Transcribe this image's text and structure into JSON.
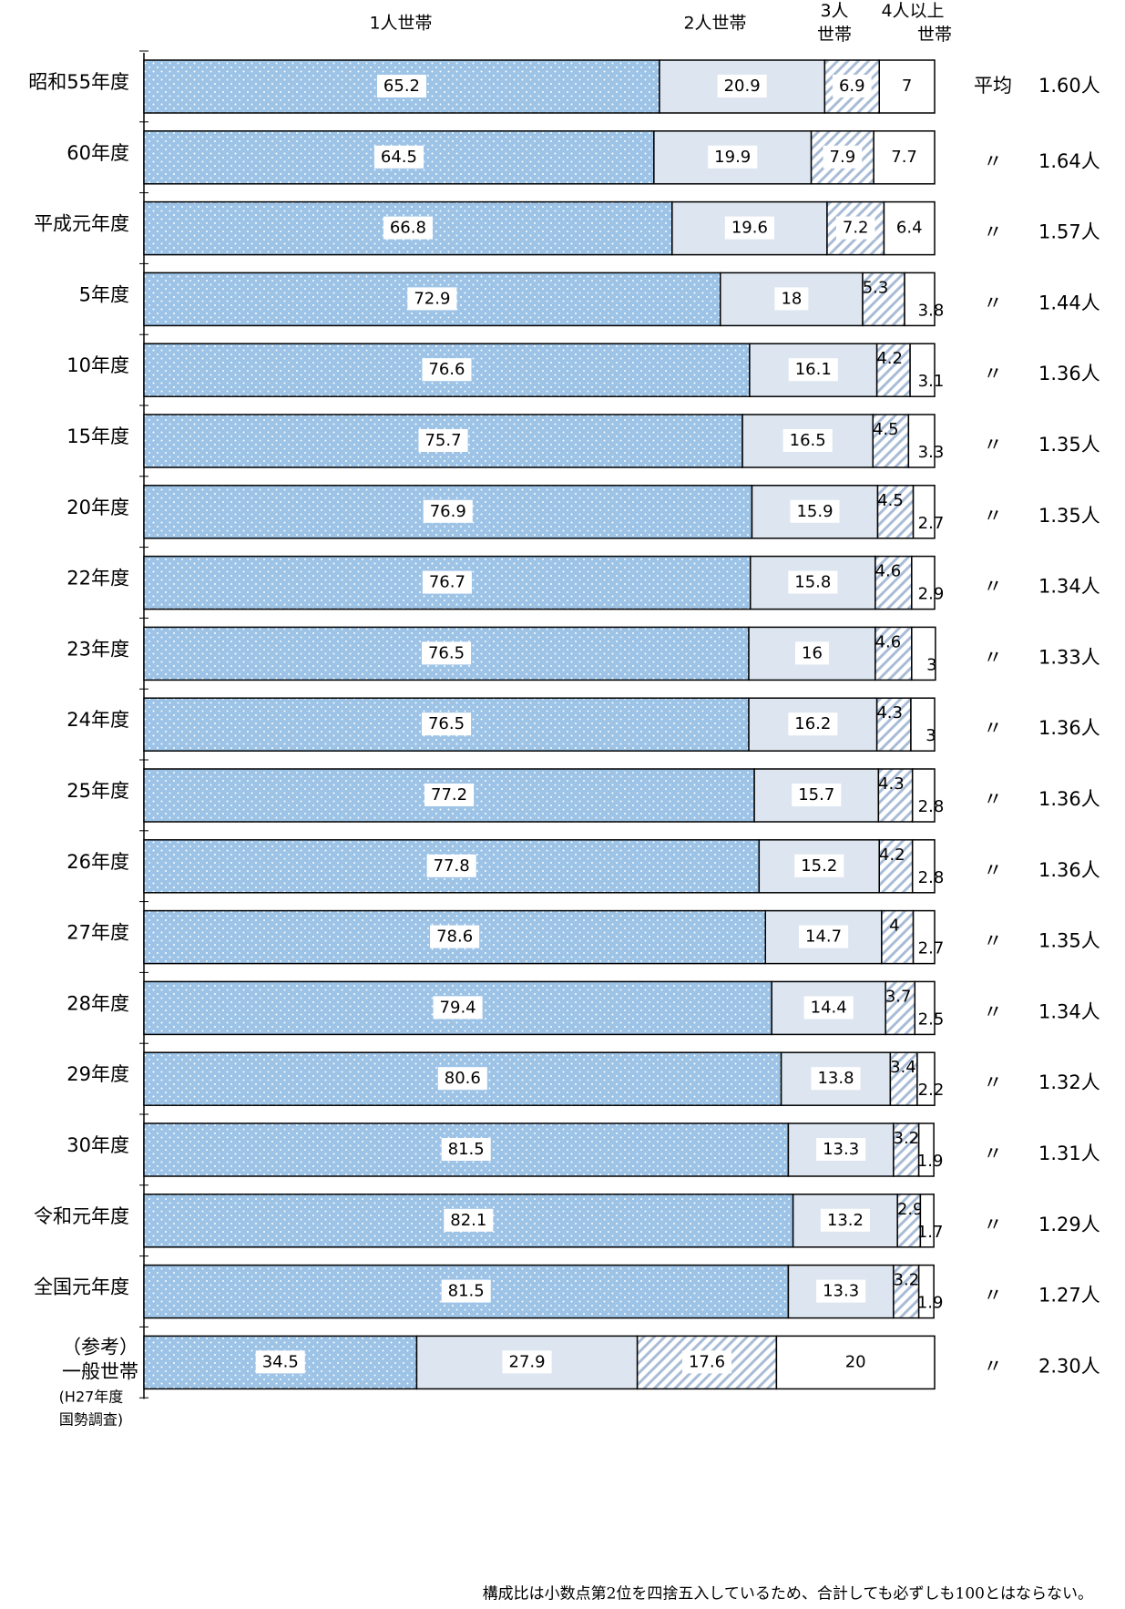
{
  "chart_data": {
    "type": "stacked_barh",
    "categories": [
      "昭和55年度",
      "60年度",
      "平成元年度",
      "5年度",
      "10年度",
      "15年度",
      "20年度",
      "22年度",
      "23年度",
      "24年度",
      "25年度",
      "26年度",
      "27年度",
      "28年度",
      "29年度",
      "30年度",
      "令和元年度",
      "全国元年度",
      "（参考）一般世帯"
    ],
    "category_note": "(H27年度 国勢調査)",
    "series": [
      {
        "name": "1人世帯",
        "color": "#9dc3e6",
        "values": [
          65.2,
          64.5,
          66.8,
          72.9,
          76.6,
          75.7,
          76.9,
          76.7,
          76.5,
          76.5,
          77.2,
          77.8,
          78.6,
          79.4,
          80.6,
          81.5,
          82.1,
          81.5,
          34.5
        ]
      },
      {
        "name": "2人世帯",
        "color": "#dde6f0",
        "values": [
          20.9,
          19.9,
          19.6,
          18.0,
          16.1,
          16.5,
          15.9,
          15.8,
          16.0,
          16.2,
          15.7,
          15.2,
          14.7,
          14.4,
          13.8,
          13.3,
          13.2,
          13.3,
          27.9
        ]
      },
      {
        "name": "3人世帯",
        "color": "#a9bcd6",
        "values": [
          6.9,
          7.9,
          7.2,
          5.3,
          4.2,
          4.5,
          4.5,
          4.6,
          4.6,
          4.3,
          4.3,
          4.2,
          4.0,
          3.7,
          3.4,
          3.2,
          2.9,
          3.2,
          17.6
        ]
      },
      {
        "name": "4人以上世帯",
        "color": "#ffffff",
        "values": [
          7.0,
          7.7,
          6.4,
          3.8,
          3.1,
          3.3,
          2.7,
          2.9,
          3.0,
          3.0,
          2.8,
          2.8,
          2.7,
          2.5,
          2.2,
          1.9,
          1.7,
          1.9,
          20.0
        ]
      }
    ],
    "xlim": [
      0,
      100
    ],
    "average_prefixes": [
      "平均",
      "〃",
      "〃",
      "〃",
      "〃",
      "〃",
      "〃",
      "〃",
      "〃",
      "〃",
      "〃",
      "〃",
      "〃",
      "〃",
      "〃",
      "〃",
      "〃",
      "〃",
      "〃"
    ],
    "averages": [
      "1.60人",
      "1.64人",
      "1.57人",
      "1.44人",
      "1.36人",
      "1.35人",
      "1.35人",
      "1.34人",
      "1.33人",
      "1.36人",
      "1.36人",
      "1.36人",
      "1.35人",
      "1.34人",
      "1.32人",
      "1.31人",
      "1.29人",
      "1.27人",
      "2.30人"
    ],
    "footnote": "構成比は小数点第2位を四捨五入しているため、合計しても必ずしも100とはならない。"
  }
}
